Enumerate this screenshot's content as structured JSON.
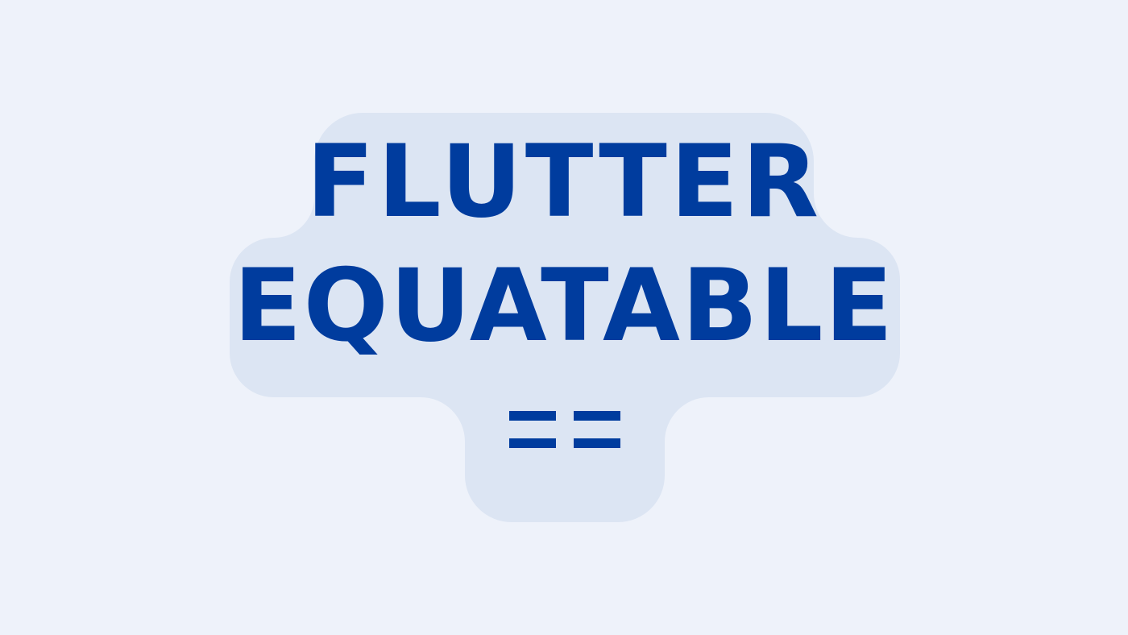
{
  "graphic": {
    "line1": "FLUTTER",
    "line2": "EQUATABLE",
    "operator": "=="
  },
  "colors": {
    "background": "#eef2fa",
    "shape_fill": "#dce5f3",
    "text": "#003c9e"
  }
}
